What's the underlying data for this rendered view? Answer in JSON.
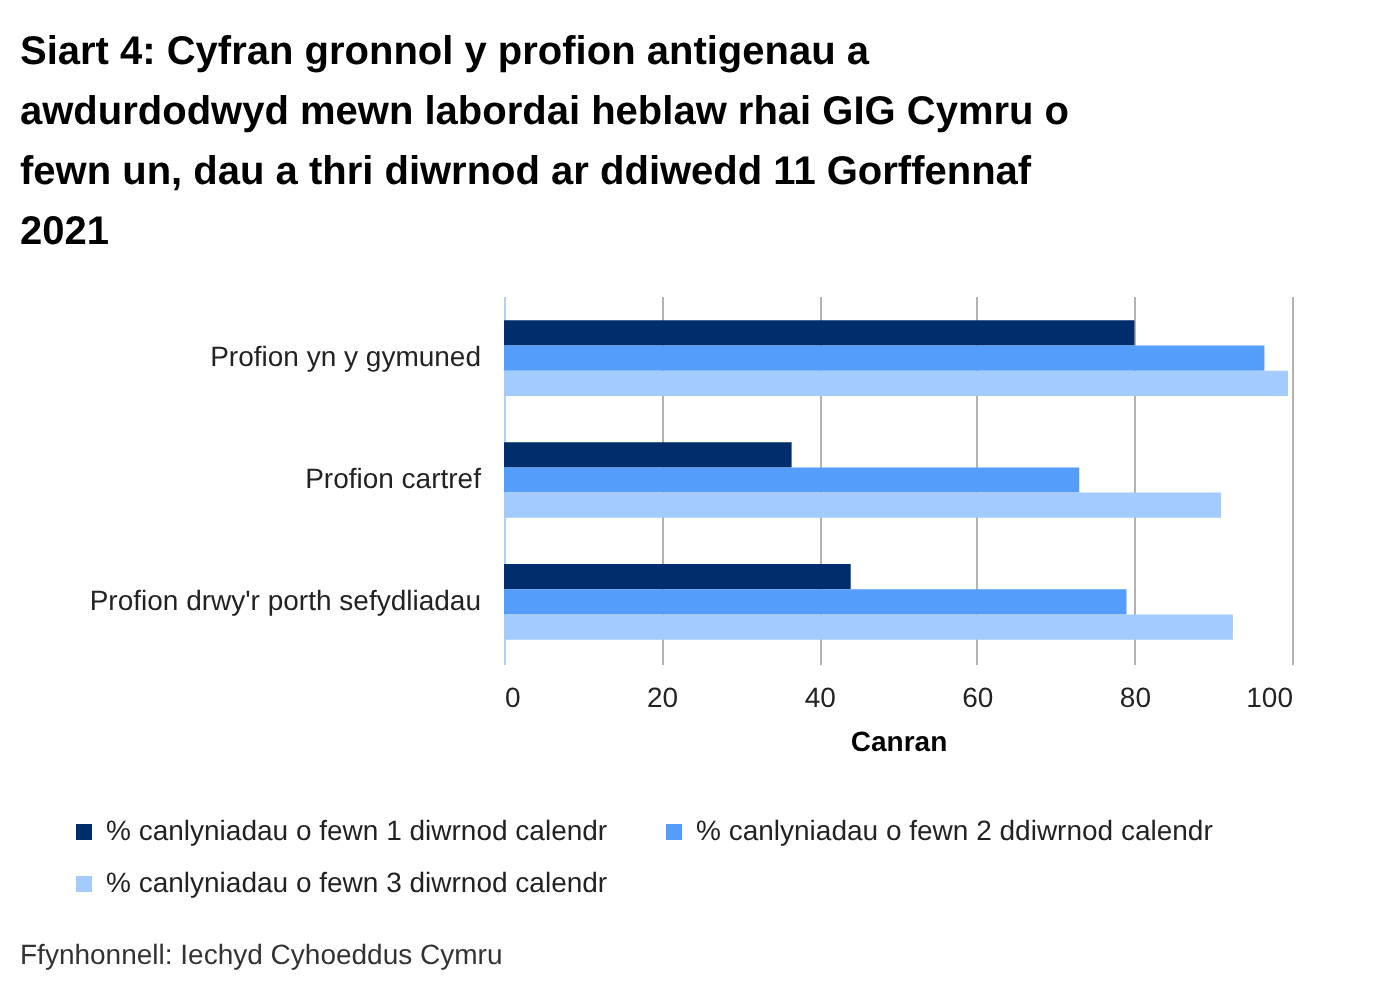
{
  "chart_data": {
    "type": "bar",
    "orientation": "horizontal",
    "title": "Siart 4: Cyfran gronnol y profion antigenau a awdurdodwyd mewn labordai heblaw rhai GIG Cymru o fewn un, dau a thri diwrnod ar ddiwedd 11 Gorffennaf 2021",
    "categories": [
      "Profion yn y gymuned",
      "Profion cartref",
      "Profion drwy'r porth sefydliadau"
    ],
    "series": [
      {
        "name": "% canlyniadau o fewn 1 diwrnod calendr",
        "color": "#002d6b",
        "values": [
          80,
          36.5,
          44
        ]
      },
      {
        "name": "% canlyniadau o fewn 2 ddiwrnod calendr",
        "color": "#559dfb",
        "values": [
          96.5,
          73,
          79
        ]
      },
      {
        "name": "% canlyniadau o fewn 3 diwrnod calendr",
        "color": "#a3cbfd",
        "values": [
          99.5,
          91,
          92.5
        ]
      }
    ],
    "xlabel": "Canran",
    "xlim": [
      0,
      100
    ],
    "xticks": [
      0,
      20,
      40,
      60,
      80,
      100
    ],
    "grid": "x",
    "legend": "bottom",
    "annotations": [
      "Ffynhonnell: Iechyd Cyhoeddus Cymru"
    ]
  }
}
